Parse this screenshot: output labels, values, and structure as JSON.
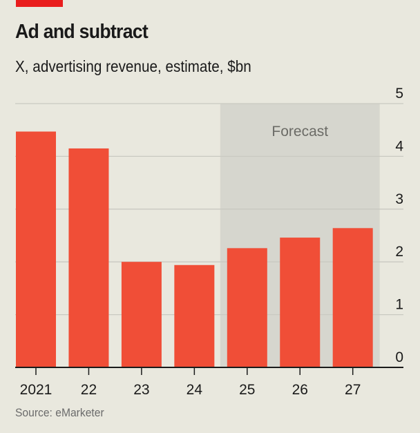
{
  "header": {
    "title": "Ad and subtract",
    "subtitle": "X, advertising revenue, estimate, $bn"
  },
  "footer": {
    "source": "Source: eMarketer"
  },
  "colors": {
    "background": "#e9e8de",
    "bar": "#f04e37",
    "forecast_shade": "#d6d6ce",
    "gridline": "#c9c9c1",
    "axis": "#1a1a1a",
    "accent_tag": "#e91d1d"
  },
  "chart_data": {
    "type": "bar",
    "title": "Ad and subtract",
    "subtitle": "X, advertising revenue, estimate, $bn",
    "xlabel": "",
    "ylabel": "$bn",
    "categories": [
      "2021",
      "22",
      "23",
      "24",
      "25",
      "26",
      "27"
    ],
    "values": [
      4.47,
      4.15,
      2.0,
      1.94,
      2.26,
      2.46,
      2.64
    ],
    "ylim": [
      0,
      5
    ],
    "yticks": [
      "0",
      "1",
      "2",
      "3",
      "4",
      "5"
    ],
    "ytick_values": [
      0,
      1,
      2,
      3,
      4,
      5
    ],
    "y_axis_position": "right",
    "grid": true,
    "forecast": {
      "label": "Forecast",
      "from_category": "25",
      "to_category": "27"
    },
    "source": "Source: eMarketer"
  }
}
